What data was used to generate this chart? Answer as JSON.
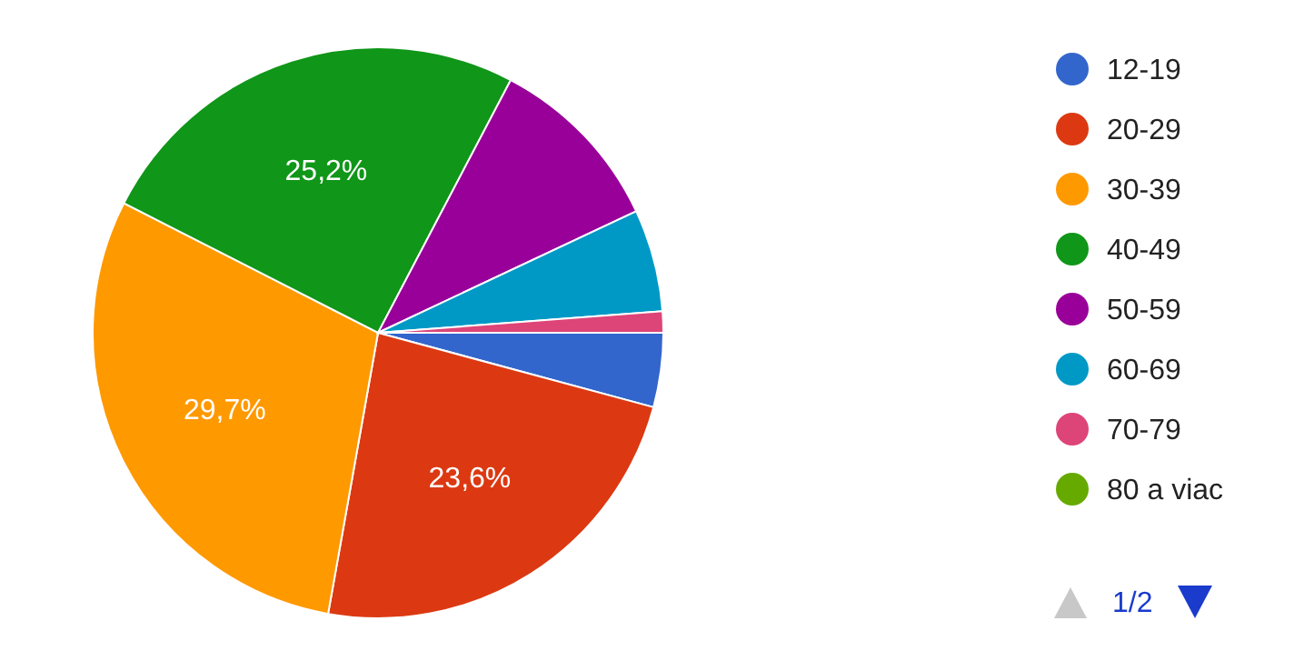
{
  "chart_data": {
    "type": "pie",
    "categories": [
      "12-19",
      "20-29",
      "30-39",
      "40-49",
      "50-59",
      "60-69",
      "70-79",
      "80 a viac"
    ],
    "values": [
      4.2,
      23.6,
      29.7,
      25.2,
      10.3,
      5.8,
      1.2,
      0
    ],
    "colors": [
      "#3366cc",
      "#dc3912",
      "#ff9900",
      "#109618",
      "#990099",
      "#0099c6",
      "#dd4477",
      "#66aa00"
    ],
    "value_labels": [
      null,
      "23,6%",
      "29,7%",
      "25,2%",
      null,
      null,
      null,
      null
    ],
    "legend": "right",
    "annotations": [
      "1/2"
    ]
  }
}
